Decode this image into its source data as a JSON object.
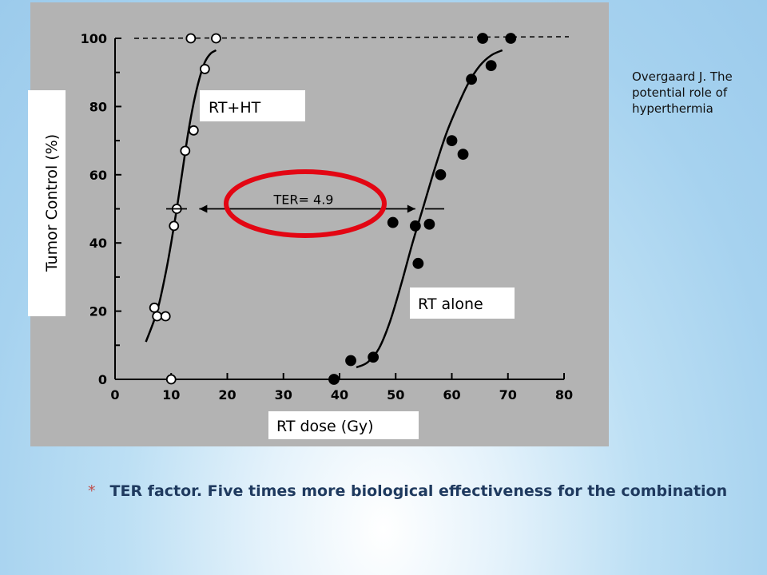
{
  "citation": {
    "lines": [
      "Overgaard  J. The",
      "potential role of",
      "hyperthermia"
    ]
  },
  "caption": {
    "bullet": "*",
    "text": "TER factor. Five times more biological effectiveness for the combination"
  },
  "colors": {
    "plot_bg": "#b3b3b3",
    "highlight": "#e30613",
    "text": "#000000"
  },
  "chart_data": {
    "type": "scatter",
    "xlim": [
      0,
      80
    ],
    "ylim": [
      0,
      100
    ],
    "x_ticks": [
      0,
      10,
      20,
      30,
      40,
      50,
      60,
      70,
      80
    ],
    "y_ticks": [
      0,
      20,
      40,
      60,
      80,
      100
    ],
    "xlabel": "RT dose (Gy)",
    "ylabel": "Tumor Control (%)",
    "series": [
      {
        "name": "RT+HT",
        "marker": "open-circle",
        "points": [
          [
            7,
            21
          ],
          [
            7.5,
            18.5
          ],
          [
            9,
            18.5
          ],
          [
            10,
            0
          ],
          [
            10.5,
            45
          ],
          [
            11,
            50
          ],
          [
            12.5,
            67
          ],
          [
            14,
            73
          ],
          [
            16,
            91
          ],
          [
            13.5,
            100
          ],
          [
            18,
            100
          ]
        ],
        "curve": [
          [
            5.5,
            11
          ],
          [
            7.5,
            20
          ],
          [
            9,
            31
          ],
          [
            10,
            40
          ],
          [
            11,
            50
          ],
          [
            12,
            61
          ],
          [
            13,
            72
          ],
          [
            14,
            81
          ],
          [
            15,
            88
          ],
          [
            16,
            93
          ],
          [
            17,
            95.5
          ],
          [
            18,
            96.5
          ]
        ]
      },
      {
        "name": "RT alone",
        "marker": "filled-circle",
        "points": [
          [
            39,
            0
          ],
          [
            42,
            5.5
          ],
          [
            46,
            6.5
          ],
          [
            49.5,
            46
          ],
          [
            53.5,
            45
          ],
          [
            54,
            34
          ],
          [
            56,
            45.5
          ],
          [
            58,
            60
          ],
          [
            60,
            70
          ],
          [
            62,
            66
          ],
          [
            63.5,
            88
          ],
          [
            65.5,
            100
          ],
          [
            67,
            92
          ],
          [
            70.5,
            100
          ]
        ],
        "curve": [
          [
            43,
            3.5
          ],
          [
            45,
            5
          ],
          [
            47,
            9
          ],
          [
            49,
            17
          ],
          [
            51,
            28
          ],
          [
            53,
            40
          ],
          [
            55,
            51
          ],
          [
            57,
            62
          ],
          [
            59,
            72
          ],
          [
            61,
            80
          ],
          [
            63,
            87
          ],
          [
            65,
            92
          ],
          [
            67,
            95
          ],
          [
            69,
            96.5
          ]
        ]
      }
    ],
    "reference_line": {
      "y": 100,
      "style": "dashed"
    },
    "annotation": {
      "label": "TER= 4.9",
      "arrow_from_x": 15,
      "arrow_to_x": 53.5,
      "y": 50
    }
  }
}
